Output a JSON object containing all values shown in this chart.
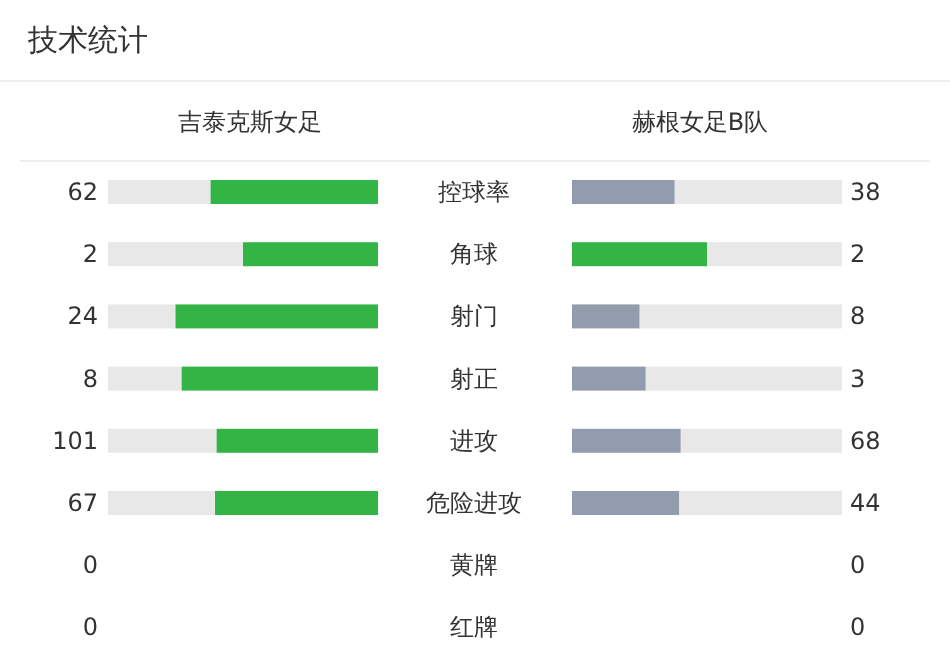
{
  "chart_data": {
    "type": "other",
    "title": "技术统计",
    "categories": [
      "控球率",
      "角球",
      "射门",
      "射正",
      "进攻",
      "危险进攻",
      "黄牌",
      "红牌"
    ],
    "series": [
      {
        "name": "吉泰克斯女足",
        "colors": [
          "#33b546",
          "#33b546",
          "#33b546",
          "#33b546",
          "#33b546",
          "#33b546",
          "#33b546",
          "#33b546"
        ],
        "values": [
          62,
          2,
          24,
          8,
          101,
          67,
          0,
          0
        ]
      },
      {
        "name": "赫根女足B队",
        "colors": [
          "#939cad",
          "#33b546",
          "#939cad",
          "#939cad",
          "#939cad",
          "#939cad",
          "#939cad",
          "#939cad"
        ],
        "values": [
          38,
          2,
          8,
          3,
          68,
          44,
          0,
          0
        ]
      }
    ],
    "data_labels": true
  }
}
